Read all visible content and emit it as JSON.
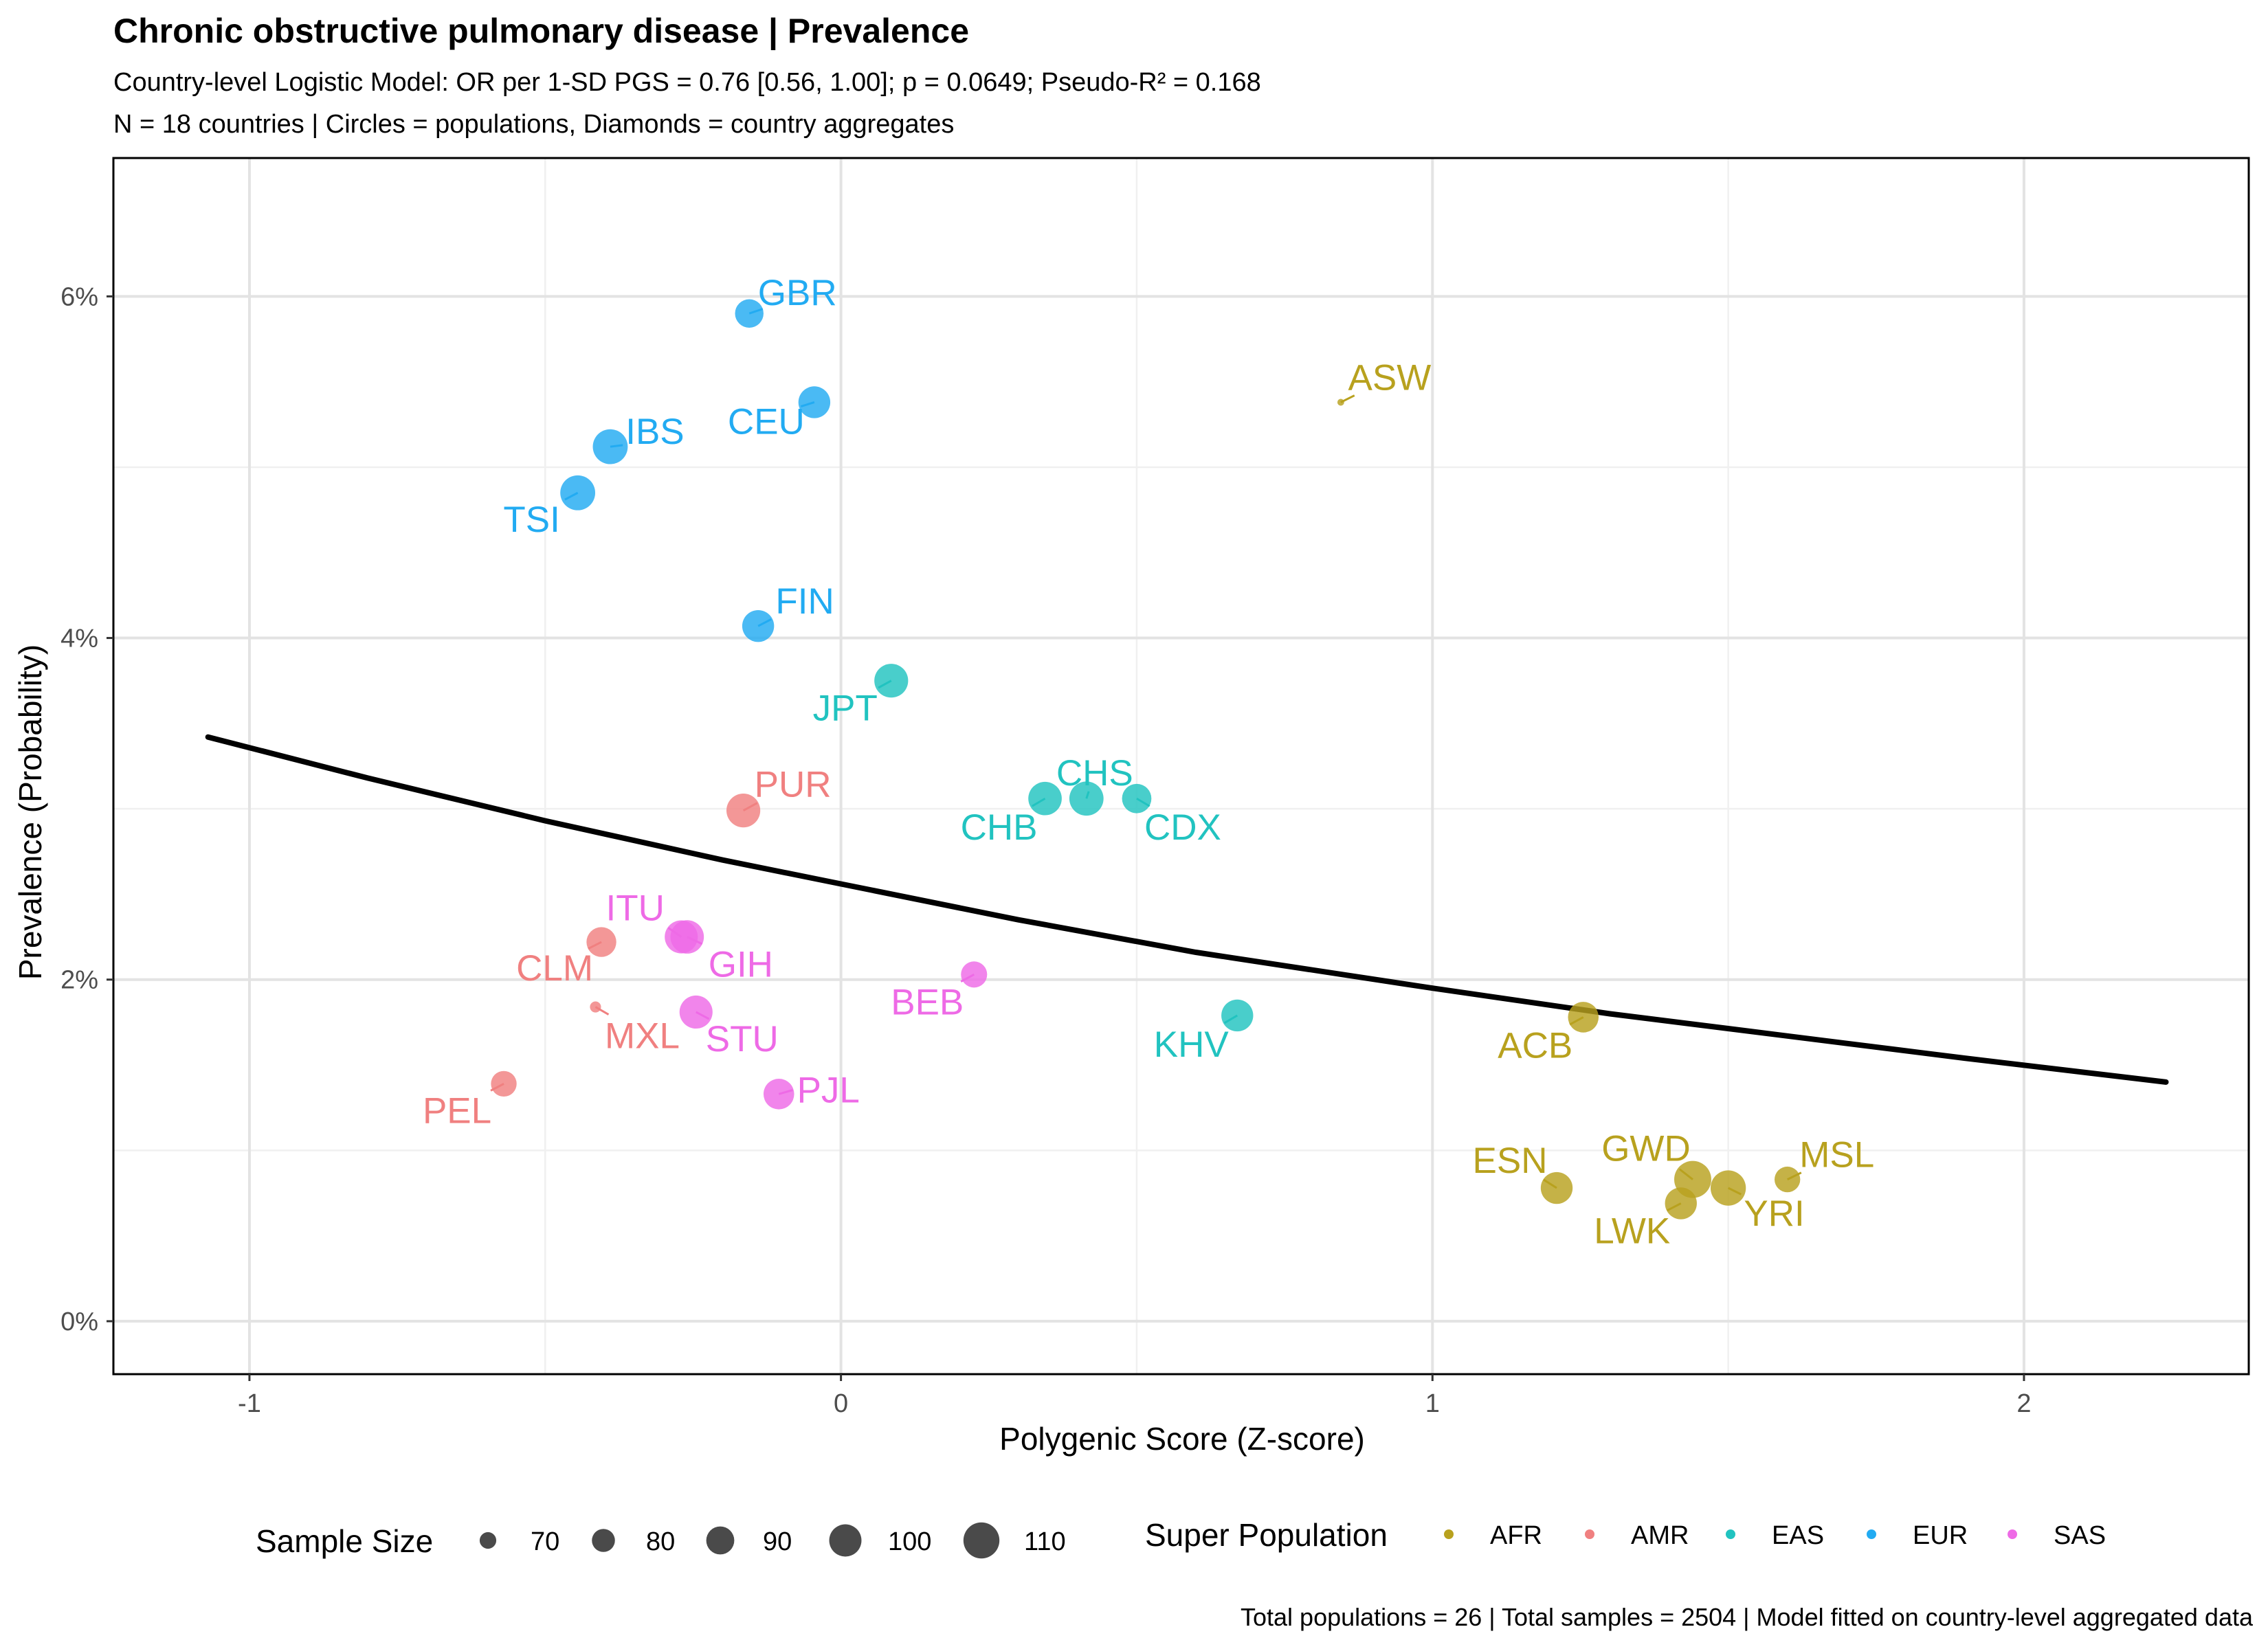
{
  "chart_data": {
    "type": "scatter",
    "title": "Chronic obstructive pulmonary disease | Prevalence",
    "subtitle_lines": [
      "Country-level Logistic Model: OR per 1-SD PGS = 0.76 [0.56, 1.00]; p = 0.0649; Pseudo-R² = 0.168",
      "N = 18 countries | Circles = populations, Diamonds = country aggregates"
    ],
    "xlabel": "Polygenic Score (Z-score)",
    "ylabel": "Prevalence (Probability)",
    "xlim": [
      -1.23,
      2.38
    ],
    "ylim": [
      -0.0031,
      0.0681
    ],
    "x_ticks": [
      -1,
      0,
      1,
      2
    ],
    "x_tick_labels": [
      "-1",
      "0",
      "1",
      "2"
    ],
    "y_ticks": [
      0,
      0.02,
      0.04,
      0.06
    ],
    "y_tick_labels": [
      "0%",
      "2%",
      "4%",
      "6%"
    ],
    "grid": true,
    "caption": "Total populations = 26 | Total samples = 2504 | Model fitted on country-level aggregated data",
    "colors": {
      "AFR": "#B8A11E",
      "AMR": "#F08080",
      "EAS": "#21C3C0",
      "EUR": "#22ABF2",
      "SAS": "#EE6AE6"
    },
    "points": [
      {
        "label": "GBR",
        "group": "EUR",
        "x": -0.155,
        "y": 0.059,
        "n": 91
      },
      {
        "label": "CEU",
        "group": "EUR",
        "x": -0.045,
        "y": 0.0538,
        "n": 99
      },
      {
        "label": "IBS",
        "group": "EUR",
        "x": -0.39,
        "y": 0.0512,
        "n": 107
      },
      {
        "label": "TSI",
        "group": "EUR",
        "x": -0.445,
        "y": 0.0485,
        "n": 107
      },
      {
        "label": "FIN",
        "group": "EUR",
        "x": -0.14,
        "y": 0.0407,
        "n": 99
      },
      {
        "label": "JPT",
        "group": "EAS",
        "x": 0.085,
        "y": 0.0375,
        "n": 104
      },
      {
        "label": "CHS",
        "group": "EAS",
        "x": 0.415,
        "y": 0.0306,
        "n": 105
      },
      {
        "label": "CHB",
        "group": "EAS",
        "x": 0.345,
        "y": 0.0306,
        "n": 103
      },
      {
        "label": "CDX",
        "group": "EAS",
        "x": 0.5,
        "y": 0.0306,
        "n": 93
      },
      {
        "label": "KHV",
        "group": "EAS",
        "x": 0.67,
        "y": 0.0179,
        "n": 99
      },
      {
        "label": "PUR",
        "group": "AMR",
        "x": -0.165,
        "y": 0.0299,
        "n": 104
      },
      {
        "label": "CLM",
        "group": "AMR",
        "x": -0.405,
        "y": 0.0222,
        "n": 94
      },
      {
        "label": "MXL",
        "group": "AMR",
        "x": -0.415,
        "y": 0.0184,
        "n": 64
      },
      {
        "label": "PEL",
        "group": "AMR",
        "x": -0.57,
        "y": 0.0139,
        "n": 85
      },
      {
        "label": "ITU",
        "group": "SAS",
        "x": -0.27,
        "y": 0.0225,
        "n": 102
      },
      {
        "label": "GIH",
        "group": "SAS",
        "x": -0.26,
        "y": 0.0225,
        "n": 103
      },
      {
        "label": "STU",
        "group": "SAS",
        "x": -0.245,
        "y": 0.0181,
        "n": 102
      },
      {
        "label": "BEB",
        "group": "SAS",
        "x": 0.225,
        "y": 0.0203,
        "n": 86
      },
      {
        "label": "PJL",
        "group": "SAS",
        "x": -0.105,
        "y": 0.0133,
        "n": 96
      },
      {
        "label": "ASW",
        "group": "AFR",
        "x": 0.845,
        "y": 0.0538,
        "n": 61
      },
      {
        "label": "ACB",
        "group": "AFR",
        "x": 1.255,
        "y": 0.0178,
        "n": 96
      },
      {
        "label": "ESN",
        "group": "AFR",
        "x": 1.21,
        "y": 0.0078,
        "n": 99
      },
      {
        "label": "GWD",
        "group": "AFR",
        "x": 1.44,
        "y": 0.0083,
        "n": 113
      },
      {
        "label": "LWK",
        "group": "AFR",
        "x": 1.42,
        "y": 0.0069,
        "n": 99
      },
      {
        "label": "YRI",
        "group": "AFR",
        "x": 1.5,
        "y": 0.0078,
        "n": 108
      },
      {
        "label": "MSL",
        "group": "AFR",
        "x": 1.6,
        "y": 0.0083,
        "n": 85
      }
    ],
    "fit_line": {
      "x": [
        -1.07,
        -0.8,
        -0.5,
        -0.2,
        0,
        0.3,
        0.6,
        1.0,
        1.3,
        1.6,
        1.9,
        2.24
      ],
      "y": [
        0.0342,
        0.0318,
        0.0293,
        0.027,
        0.0256,
        0.0235,
        0.0216,
        0.0195,
        0.018,
        0.0167,
        0.0154,
        0.014
      ]
    },
    "legend_size": {
      "title": "Sample Size",
      "values": [
        70,
        80,
        90,
        100,
        110
      ],
      "labels": [
        "70",
        "80",
        "90",
        "100",
        "110"
      ]
    },
    "legend_group": {
      "title": "Super Population",
      "items": [
        "AFR",
        "AMR",
        "EAS",
        "EUR",
        "SAS"
      ]
    }
  }
}
